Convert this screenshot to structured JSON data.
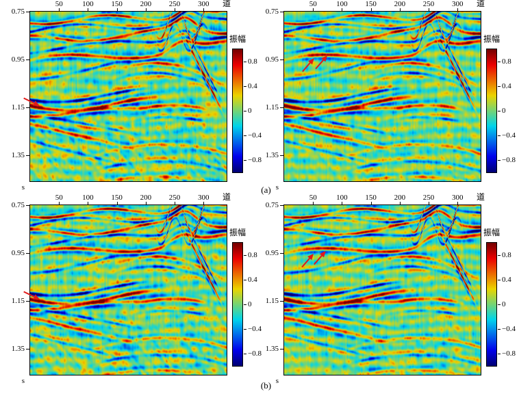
{
  "figure": {
    "captions": {
      "a": "(a)",
      "b": "(b)"
    }
  },
  "chart_data": {
    "type": "heatmap",
    "description": "Four seismic amplitude sections arranged in a 2x2 grid (row (a) top, row (b) bottom). Each section uses a jet/rainbow colormap with its own vertical colorbar. Red arrows annotate seismic events in the panels.",
    "x_axis": {
      "label": "道",
      "side": "top",
      "range": [
        0,
        340
      ],
      "tick_values": [
        50,
        100,
        150,
        200,
        250,
        300
      ],
      "tick_labels": [
        "50",
        "100",
        "150",
        "200",
        "250",
        "300"
      ]
    },
    "y_axis": {
      "label": "s",
      "side": "left",
      "range": [
        0.75,
        1.46
      ],
      "tick_values": [
        0.75,
        0.95,
        1.15,
        1.35
      ],
      "tick_labels": [
        "0.75",
        "0.95",
        "1.15",
        "1.35"
      ]
    },
    "colorbar": {
      "title": "振幅",
      "range": [
        -1,
        1
      ],
      "colormap": "jet",
      "tick_values": [
        0.8,
        0.4,
        0,
        -0.4,
        -0.8
      ],
      "tick_labels": [
        "0.8",
        "0.4",
        "0",
        "−0.4",
        "−0.8"
      ]
    },
    "panels": [
      {
        "id": "a-left",
        "caption_group": "(a)",
        "grid_position": "top-left",
        "arrows": [
          {
            "x": 0.049,
            "y": 0.556,
            "angle_deg": 26
          }
        ]
      },
      {
        "id": "a-right",
        "caption_group": "(a)",
        "grid_position": "top-right",
        "arrows": [
          {
            "x": 0.153,
            "y": 0.274,
            "angle_deg": -49
          },
          {
            "x": 0.22,
            "y": 0.258,
            "angle_deg": -49
          }
        ]
      },
      {
        "id": "b-left",
        "caption_group": "(b)",
        "grid_position": "bottom-left",
        "arrows": [
          {
            "x": 0.049,
            "y": 0.556,
            "angle_deg": 26
          }
        ]
      },
      {
        "id": "b-right",
        "caption_group": "(b)",
        "grid_position": "bottom-right",
        "arrows": [
          {
            "x": 0.15,
            "y": 0.286,
            "angle_deg": -49
          },
          {
            "x": 0.212,
            "y": 0.27,
            "angle_deg": -49
          }
        ]
      }
    ],
    "arrow_color": "#e01a1a",
    "render_seed": 1337
  }
}
